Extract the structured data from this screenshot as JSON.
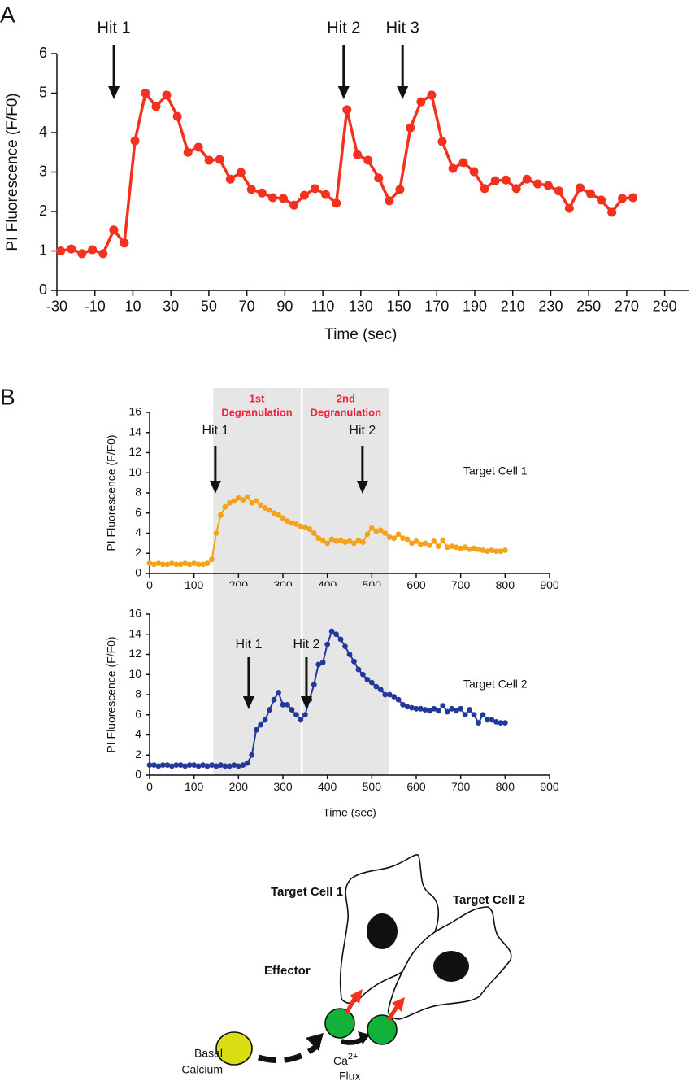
{
  "chart_data": [
    {
      "type": "line",
      "panel": "A",
      "xlabel": "Time (sec)",
      "ylabel": "PI Fluorescence (F/F0)",
      "x": [
        -28.0,
        -22.4,
        -16.8,
        -11.3,
        -5.7,
        -0.1,
        5.5,
        11.1,
        16.6,
        22.2,
        27.8,
        33.4,
        39.0,
        44.5,
        50.1,
        55.7,
        61.3,
        66.9,
        72.4,
        78.0,
        83.6,
        89.2,
        94.8,
        100.3,
        105.9,
        111.5,
        117.1,
        122.7,
        128.2,
        133.8,
        139.4,
        145.0,
        150.6,
        156.1,
        161.7,
        167.3,
        172.9,
        178.5,
        184.0,
        189.6,
        195.2,
        200.8,
        206.4,
        211.9,
        217.5,
        223.1,
        228.7,
        234.3,
        239.8,
        245.4,
        251.0,
        256.6,
        262.2,
        267.7,
        273.3
      ],
      "series": [
        {
          "color": "#f2311f",
          "values": [
            1.0,
            1.05,
            0.93,
            1.03,
            0.93,
            1.53,
            1.2,
            3.79,
            5.0,
            4.66,
            4.95,
            4.41,
            3.5,
            3.63,
            3.3,
            3.32,
            2.82,
            2.99,
            2.56,
            2.47,
            2.35,
            2.33,
            2.16,
            2.41,
            2.58,
            2.43,
            2.21,
            4.58,
            3.44,
            3.3,
            2.85,
            2.27,
            2.56,
            4.12,
            4.78,
            4.95,
            3.77,
            3.09,
            3.24,
            3.01,
            2.58,
            2.78,
            2.8,
            2.58,
            2.82,
            2.7,
            2.66,
            2.52,
            2.08,
            2.6,
            2.45,
            2.29,
            1.98,
            2.33,
            2.35
          ]
        }
      ],
      "xlim": [
        -30,
        303
      ],
      "ylim": [
        0,
        6
      ],
      "xticks": [
        -30,
        -10,
        10,
        30,
        50,
        70,
        90,
        110,
        130,
        150,
        170,
        190,
        210,
        230,
        250,
        270,
        290
      ],
      "yticks": [
        0,
        1,
        2,
        3,
        4,
        5,
        6
      ],
      "annotations": [
        {
          "label": "Hit 1",
          "x": 0
        },
        {
          "label": "Hit 2",
          "x": 121
        },
        {
          "label": "Hit 3",
          "x": 152
        }
      ]
    },
    {
      "type": "line",
      "panel": "B",
      "ylabel": "PI Fluorescence (F/F0)",
      "x": [
        0,
        10,
        20,
        30,
        40,
        50,
        60,
        70,
        80,
        90,
        100,
        110,
        120,
        130,
        140,
        150,
        160,
        170,
        180,
        190,
        200,
        210,
        220,
        230,
        240,
        250,
        260,
        270,
        280,
        290,
        300,
        310,
        320,
        330,
        340,
        350,
        360,
        370,
        380,
        390,
        400,
        410,
        420,
        430,
        440,
        450,
        460,
        470,
        480,
        490,
        500,
        510,
        520,
        530,
        540,
        550,
        560,
        570,
        580,
        590,
        600,
        610,
        620,
        630,
        640,
        650,
        660,
        670,
        680,
        690,
        700,
        710,
        720,
        730,
        740,
        750,
        760,
        770,
        780,
        790,
        800
      ],
      "series": [
        {
          "name": "Target Cell 1",
          "color": "#f5a21b",
          "values": [
            1.0,
            0.9,
            1.0,
            0.9,
            0.9,
            1.0,
            0.9,
            0.9,
            1.0,
            0.9,
            1.0,
            0.9,
            0.9,
            1.0,
            1.4,
            4.0,
            5.8,
            6.6,
            7.0,
            7.2,
            7.5,
            7.3,
            7.6,
            7.0,
            7.2,
            6.8,
            6.5,
            6.3,
            6.0,
            5.8,
            5.5,
            5.2,
            5.0,
            4.9,
            4.7,
            4.6,
            4.4,
            4.0,
            3.5,
            3.3,
            3.0,
            3.4,
            3.2,
            3.3,
            3.1,
            3.2,
            3.0,
            3.3,
            3.1,
            3.9,
            4.5,
            4.2,
            4.3,
            4.0,
            3.6,
            3.5,
            3.9,
            3.5,
            3.4,
            3.0,
            3.2,
            2.9,
            3.0,
            2.8,
            3.2,
            2.7,
            3.3,
            2.6,
            2.7,
            2.6,
            2.5,
            2.6,
            2.4,
            2.5,
            2.4,
            2.3,
            2.2,
            2.3,
            2.2,
            2.2,
            2.3
          ]
        }
      ],
      "xlim": [
        0,
        900
      ],
      "ylim": [
        0,
        16
      ],
      "xticks": [
        0,
        100,
        200,
        300,
        400,
        500,
        600,
        700,
        800,
        900
      ],
      "yticks": [
        0,
        2,
        4,
        6,
        8,
        10,
        12,
        14,
        16
      ],
      "annotations": [
        {
          "label": "Hit 1",
          "x": 148
        },
        {
          "label": "Hit 2",
          "x": 479
        }
      ],
      "regions": [
        {
          "label": [
            "1st",
            "Degranulation"
          ],
          "xlim": [
            143,
            340
          ]
        },
        {
          "label": [
            "2nd",
            "Degranulation"
          ],
          "xlim": [
            345,
            538
          ]
        }
      ]
    },
    {
      "type": "line",
      "xlabel": "Time (sec)",
      "ylabel": "PI Fluorescence (F/F0)",
      "x": [
        0,
        10,
        20,
        30,
        40,
        50,
        60,
        70,
        80,
        90,
        100,
        110,
        120,
        130,
        140,
        150,
        160,
        170,
        180,
        190,
        200,
        210,
        220,
        230,
        240,
        250,
        260,
        270,
        280,
        290,
        300,
        310,
        320,
        330,
        340,
        350,
        360,
        370,
        380,
        390,
        400,
        410,
        420,
        430,
        440,
        450,
        460,
        470,
        480,
        490,
        500,
        510,
        520,
        530,
        540,
        550,
        560,
        570,
        580,
        590,
        600,
        610,
        620,
        630,
        640,
        650,
        660,
        670,
        680,
        690,
        700,
        710,
        720,
        730,
        740,
        750,
        760,
        770,
        780,
        790,
        800
      ],
      "series": [
        {
          "name": "Target Cell 2",
          "color": "#22399a",
          "values": [
            1.0,
            1.0,
            0.9,
            1.0,
            1.0,
            0.9,
            1.0,
            1.0,
            0.9,
            1.0,
            1.0,
            0.9,
            1.0,
            0.9,
            1.0,
            0.9,
            1.0,
            0.9,
            0.9,
            1.0,
            0.9,
            1.0,
            1.2,
            2.0,
            4.5,
            5.0,
            5.5,
            6.5,
            7.5,
            8.2,
            7.0,
            7.0,
            6.5,
            6.0,
            5.5,
            6.0,
            7.5,
            9.0,
            11.0,
            11.2,
            13.0,
            14.3,
            14.0,
            13.5,
            12.8,
            12.0,
            11.3,
            10.5,
            10.0,
            9.5,
            9.2,
            8.8,
            8.5,
            8.0,
            8.0,
            7.8,
            7.5,
            7.0,
            6.8,
            6.7,
            6.6,
            6.6,
            6.5,
            6.4,
            6.6,
            6.4,
            6.9,
            6.3,
            6.6,
            6.4,
            6.6,
            6.0,
            6.5,
            6.0,
            5.2,
            6.0,
            5.5,
            5.5,
            5.3,
            5.2,
            5.2
          ]
        }
      ],
      "xlim": [
        0,
        900
      ],
      "ylim": [
        0,
        16
      ],
      "xticks": [
        0,
        100,
        200,
        300,
        400,
        500,
        600,
        700,
        800,
        900
      ],
      "yticks": [
        0,
        2,
        4,
        6,
        8,
        10,
        12,
        14,
        16
      ],
      "annotations": [
        {
          "label": "Hit 1",
          "x": 223
        },
        {
          "label": "Hit 2",
          "x": 353
        }
      ],
      "regions": [
        {
          "xlim": [
            143,
            340
          ]
        },
        {
          "xlim": [
            345,
            538
          ]
        }
      ]
    }
  ],
  "diagram": {
    "target_cell_1": "Target Cell 1",
    "target_cell_2": "Target Cell 2",
    "effector": "Effector",
    "basal": [
      "Basal",
      "Calcium"
    ],
    "flux": [
      "Ca",
      "2+",
      "Flux"
    ]
  }
}
